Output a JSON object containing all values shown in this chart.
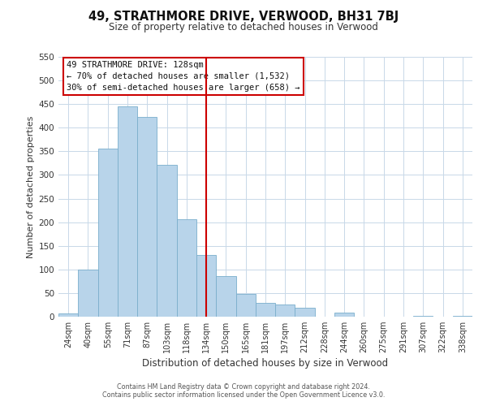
{
  "title": "49, STRATHMORE DRIVE, VERWOOD, BH31 7BJ",
  "subtitle": "Size of property relative to detached houses in Verwood",
  "xlabel": "Distribution of detached houses by size in Verwood",
  "ylabel": "Number of detached properties",
  "bar_labels": [
    "24sqm",
    "40sqm",
    "55sqm",
    "71sqm",
    "87sqm",
    "103sqm",
    "118sqm",
    "134sqm",
    "150sqm",
    "165sqm",
    "181sqm",
    "197sqm",
    "212sqm",
    "228sqm",
    "244sqm",
    "260sqm",
    "275sqm",
    "291sqm",
    "307sqm",
    "322sqm",
    "338sqm"
  ],
  "bar_values": [
    7,
    100,
    355,
    445,
    422,
    322,
    207,
    130,
    86,
    48,
    29,
    25,
    19,
    0,
    9,
    0,
    0,
    0,
    2,
    0,
    2
  ],
  "bar_color": "#b8d4ea",
  "bar_edge_color": "#7aaecc",
  "reference_line_index": 7,
  "reference_line_color": "#cc0000",
  "ylim": [
    0,
    550
  ],
  "yticks": [
    0,
    50,
    100,
    150,
    200,
    250,
    300,
    350,
    400,
    450,
    500,
    550
  ],
  "annotation_title": "49 STRATHMORE DRIVE: 128sqm",
  "annotation_line1": "← 70% of detached houses are smaller (1,532)",
  "annotation_line2": "30% of semi-detached houses are larger (658) →",
  "footnote1": "Contains HM Land Registry data © Crown copyright and database right 2024.",
  "footnote2": "Contains public sector information licensed under the Open Government Licence v3.0.",
  "background_color": "#ffffff",
  "grid_color": "#c8d8e8",
  "title_fontsize": 10.5,
  "subtitle_fontsize": 8.5,
  "ylabel_fontsize": 8,
  "xlabel_fontsize": 8.5,
  "tick_fontsize": 7,
  "annot_fontsize": 7.5,
  "footnote_fontsize": 5.8
}
